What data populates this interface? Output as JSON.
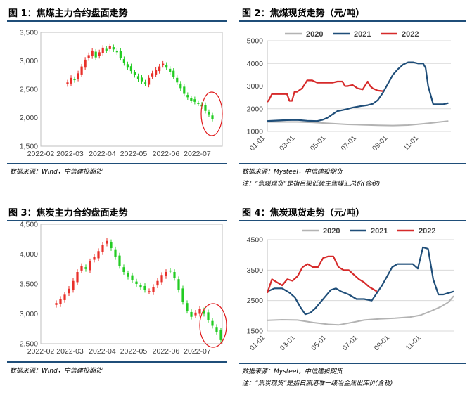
{
  "panels": [
    {
      "title": "图 1：焦煤主力合约盘面走势",
      "source": "数据来源：Wind，中信建投期货",
      "note": ""
    },
    {
      "title": "图 2：焦煤现货走势（元/吨）",
      "source": "数据来源：Mysteel，中信建投期货",
      "note": "注：“焦煤现货”是指吕梁低硫主焦煤汇总价(含税)"
    },
    {
      "title": "图 3：焦炭主力合约盘面走势",
      "source": "数据来源：Wind，中信建投期货",
      "note": ""
    },
    {
      "title": "图 4：焦炭现货走势（元/吨）",
      "source": "数据来源：Mysteel，中信建投期货",
      "note": "注：“焦炭现货”是指日照港准一级冶金焦出库价(含税)"
    }
  ],
  "colors": {
    "rule": "#1f4e79",
    "up": "#e8302a",
    "down": "#22cc22",
    "s2020": "#b3b3b3",
    "s2021": "#1f4e79",
    "s2022": "#d62a2a",
    "circle": "#e0191b"
  },
  "chart_data": [
    {
      "type": "candlestick",
      "title": "",
      "x_ticks": [
        "2022-02",
        "2022-03",
        "2022-04",
        "2022-05",
        "2022-06",
        "2022-07"
      ],
      "x_range": [
        "2022-02-01",
        "2022-07-25"
      ],
      "y_ticks": [
        "1,500",
        "2,000",
        "2,500",
        "3,000",
        "3,500"
      ],
      "ylim": [
        1500,
        3500
      ],
      "grid": false,
      "annotation": "red ellipse around the latest candles",
      "closes": [
        2620,
        2700,
        2660,
        2780,
        2900,
        3020,
        3100,
        3180,
        3060,
        3150,
        3230,
        3180,
        3260,
        3200,
        3150,
        3050,
        2960,
        2880,
        2820,
        2750,
        2680,
        2640,
        2600,
        2700,
        2780,
        2840,
        2900,
        2950,
        2880,
        2800,
        2720,
        2620,
        2520,
        2420,
        2360,
        2300,
        2280,
        2250,
        2200,
        2120,
        2060,
        1980
      ]
    },
    {
      "type": "line",
      "title": "",
      "x_ticks": [
        "01-01",
        "03-01",
        "05-01",
        "07-01",
        "09-01",
        "11-01"
      ],
      "y_ticks": [
        "1000",
        "2000",
        "3000",
        "4000",
        "5000"
      ],
      "ylim": [
        1000,
        5000
      ],
      "grid": true,
      "legend": "top",
      "series": [
        {
          "name": "2020",
          "x": [
            1,
            30,
            60,
            90,
            120,
            160,
            190,
            220,
            250,
            280,
            300,
            320,
            340,
            360
          ],
          "y": [
            1420,
            1420,
            1420,
            1400,
            1360,
            1310,
            1290,
            1270,
            1260,
            1280,
            1320,
            1360,
            1410,
            1460
          ]
        },
        {
          "name": "2021",
          "x": [
            1,
            20,
            40,
            60,
            80,
            100,
            110,
            120,
            130,
            140,
            150,
            160,
            170,
            180,
            190,
            200,
            210,
            220,
            230,
            240,
            250,
            260,
            270,
            280,
            290,
            300,
            305,
            310,
            315,
            320,
            330,
            340,
            350,
            360
          ],
          "y": [
            1460,
            1480,
            1500,
            1510,
            1470,
            1460,
            1510,
            1600,
            1750,
            1900,
            1940,
            1990,
            2050,
            2090,
            2130,
            2160,
            2220,
            2380,
            2700,
            3100,
            3500,
            3750,
            3950,
            4050,
            4050,
            4000,
            4000,
            4000,
            3800,
            3000,
            2200,
            2200,
            2200,
            2250
          ]
        },
        {
          "name": "2022",
          "x": [
            1,
            5,
            10,
            20,
            30,
            40,
            45,
            50,
            55,
            60,
            70,
            80,
            90,
            100,
            110,
            120,
            130,
            140,
            150,
            155,
            160,
            170,
            180,
            190,
            200,
            205,
            210,
            220,
            230
          ],
          "y": [
            2300,
            2420,
            2650,
            2650,
            2650,
            2650,
            2350,
            2350,
            2750,
            2750,
            2900,
            3250,
            3250,
            3150,
            3150,
            3150,
            3150,
            3200,
            3200,
            3000,
            3000,
            3050,
            2900,
            2850,
            3200,
            3000,
            2900,
            2800,
            2780
          ]
        }
      ]
    },
    {
      "type": "candlestick",
      "title": "",
      "x_ticks": [
        "2022-02",
        "2022-03",
        "2022-04",
        "2022-05",
        "2022-06",
        "2022-07"
      ],
      "x_range": [
        "2022-02-01",
        "2022-07-25"
      ],
      "y_ticks": [
        "2,500",
        "3,000",
        "3,500",
        "4,000",
        "4,500"
      ],
      "ylim": [
        2500,
        4500
      ],
      "grid": false,
      "annotation": "red ellipse around the latest candles",
      "closes": [
        3180,
        3250,
        3320,
        3420,
        3550,
        3700,
        3800,
        3750,
        3880,
        3950,
        4050,
        4150,
        4220,
        4100,
        3950,
        3800,
        3700,
        3620,
        3560,
        3500,
        3440,
        3400,
        3380,
        3450,
        3550,
        3650,
        3700,
        3720,
        3600,
        3400,
        3200,
        3050,
        2950,
        3020,
        3080,
        3000,
        2900,
        2800,
        2700,
        2560
      ]
    },
    {
      "type": "line",
      "title": "",
      "x_ticks": [
        "01-01",
        "03-01",
        "05-01",
        "07-01",
        "09-01",
        "11-01"
      ],
      "y_ticks": [
        "1500",
        "2500",
        "3500",
        "4500"
      ],
      "ylim": [
        1500,
        4500
      ],
      "grid": true,
      "legend": "top",
      "series": [
        {
          "name": "2020",
          "x": [
            1,
            30,
            60,
            90,
            120,
            140,
            160,
            190,
            220,
            250,
            280,
            300,
            320,
            340,
            355,
            365
          ],
          "y": [
            1850,
            1870,
            1860,
            1780,
            1720,
            1700,
            1760,
            1860,
            1900,
            1920,
            1960,
            2020,
            2150,
            2300,
            2450,
            2650
          ]
        },
        {
          "name": "2021",
          "x": [
            1,
            15,
            30,
            45,
            55,
            65,
            75,
            85,
            95,
            105,
            115,
            125,
            135,
            145,
            160,
            175,
            190,
            205,
            215,
            225,
            235,
            245,
            255,
            265,
            275,
            285,
            295,
            305,
            315,
            325,
            335,
            345,
            355,
            365
          ],
          "y": [
            2800,
            2900,
            2900,
            2750,
            2600,
            2300,
            2050,
            2100,
            2250,
            2450,
            2650,
            2850,
            2900,
            2800,
            2700,
            2550,
            2550,
            2500,
            2750,
            3000,
            3300,
            3600,
            3700,
            3700,
            3700,
            3700,
            3550,
            4250,
            4200,
            3200,
            2700,
            2700,
            2750,
            2800
          ]
        },
        {
          "name": "2022",
          "x": [
            1,
            10,
            20,
            30,
            40,
            50,
            60,
            70,
            80,
            90,
            100,
            110,
            120,
            130,
            140,
            150,
            160,
            170,
            180,
            190,
            200,
            210,
            215
          ],
          "y": [
            2750,
            3200,
            3100,
            3000,
            3200,
            3150,
            3300,
            3600,
            3700,
            3600,
            3600,
            3900,
            3950,
            3950,
            3600,
            3500,
            3500,
            3350,
            3200,
            3100,
            2950,
            2850,
            2800
          ]
        }
      ]
    }
  ]
}
